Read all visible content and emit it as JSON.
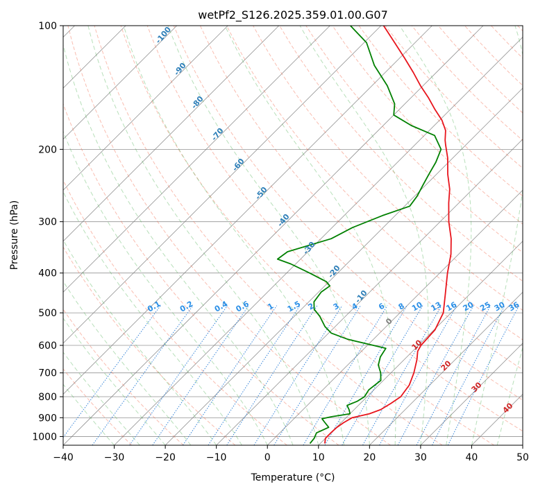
{
  "chart_data": {
    "type": "line",
    "title": "wetPf2_S126.2025.359.01.00.G07",
    "xlabel": "Temperature (°C)",
    "ylabel": "Pressure (hPa)",
    "xlim": [
      -40,
      50
    ],
    "ylim": [
      1050,
      100
    ],
    "y_scale": "log",
    "skew": "skew-T",
    "grid": true,
    "x_ticks": [
      -40,
      -30,
      -20,
      -10,
      0,
      10,
      20,
      30,
      40,
      50
    ],
    "y_ticks": [
      100,
      200,
      300,
      400,
      500,
      600,
      700,
      800,
      900,
      1000
    ],
    "series": [
      {
        "role": "temperature",
        "color": "#e8141c",
        "points": [
          [
            1040,
            10.9
          ],
          [
            1010,
            10.0
          ],
          [
            980,
            10.0
          ],
          [
            950,
            10.1
          ],
          [
            925,
            10.5
          ],
          [
            900,
            11.2
          ],
          [
            880,
            13.8
          ],
          [
            860,
            15.2
          ],
          [
            830,
            16.0
          ],
          [
            800,
            16.6
          ],
          [
            750,
            16.0
          ],
          [
            700,
            14.5
          ],
          [
            650,
            12.5
          ],
          [
            620,
            11.0
          ],
          [
            600,
            10.5
          ],
          [
            550,
            10.2
          ],
          [
            500,
            8.5
          ],
          [
            450,
            5.2
          ],
          [
            400,
            1.5
          ],
          [
            360,
            -1.5
          ],
          [
            330,
            -4.5
          ],
          [
            300,
            -8.3
          ],
          [
            270,
            -12.0
          ],
          [
            250,
            -14.5
          ],
          [
            230,
            -17.8
          ],
          [
            210,
            -21.0
          ],
          [
            195,
            -24.0
          ],
          [
            190,
            -25.0
          ],
          [
            180,
            -26.8
          ],
          [
            170,
            -29.5
          ],
          [
            160,
            -33.0
          ],
          [
            150,
            -36.5
          ],
          [
            140,
            -40.5
          ],
          [
            130,
            -44.5
          ],
          [
            120,
            -49.0
          ],
          [
            110,
            -54.0
          ],
          [
            100,
            -59.5
          ]
        ]
      },
      {
        "role": "dewpoint",
        "color": "#008000",
        "points": [
          [
            1040,
            8.0
          ],
          [
            1010,
            7.8
          ],
          [
            980,
            7.2
          ],
          [
            950,
            8.5
          ],
          [
            920,
            6.5
          ],
          [
            905,
            5.5
          ],
          [
            895,
            7.0
          ],
          [
            880,
            10.0
          ],
          [
            860,
            9.0
          ],
          [
            840,
            7.8
          ],
          [
            820,
            9.0
          ],
          [
            800,
            9.5
          ],
          [
            770,
            9.0
          ],
          [
            730,
            9.5
          ],
          [
            700,
            8.0
          ],
          [
            670,
            6.0
          ],
          [
            640,
            4.8
          ],
          [
            610,
            4.2
          ],
          [
            580,
            -5.0
          ],
          [
            560,
            -9.5
          ],
          [
            540,
            -12.0
          ],
          [
            510,
            -15.0
          ],
          [
            490,
            -17.5
          ],
          [
            470,
            -19.0
          ],
          [
            445,
            -19.5
          ],
          [
            430,
            -19.0
          ],
          [
            420,
            -20.5
          ],
          [
            400,
            -25.5
          ],
          [
            380,
            -31.0
          ],
          [
            370,
            -34.5
          ],
          [
            355,
            -34.0
          ],
          [
            330,
            -28.0
          ],
          [
            310,
            -26.0
          ],
          [
            290,
            -22.5
          ],
          [
            275,
            -19.0
          ],
          [
            260,
            -19.5
          ],
          [
            245,
            -20.5
          ],
          [
            230,
            -21.5
          ],
          [
            215,
            -22.5
          ],
          [
            200,
            -24.0
          ],
          [
            185,
            -28.0
          ],
          [
            175,
            -34.5
          ],
          [
            165,
            -40.0
          ],
          [
            155,
            -42.0
          ],
          [
            140,
            -47.0
          ],
          [
            125,
            -53.5
          ],
          [
            110,
            -59.5
          ],
          [
            100,
            -66.0
          ]
        ]
      }
    ],
    "dry_adiabat_labels": [
      "-100",
      "-90",
      "-80",
      "-70",
      "-60",
      "-50",
      "-40",
      "-30",
      "-20",
      "-10"
    ],
    "mixing_ratio_labels": [
      "0.1",
      "0.2",
      "0.4",
      "0.6",
      "1",
      "1.5",
      "2",
      "3",
      "4",
      "6",
      "8",
      "10",
      "13",
      "16",
      "20",
      "25",
      "30",
      "36"
    ],
    "moist_adiabat_labels": [
      "0",
      "10",
      "20",
      "30",
      "40"
    ]
  },
  "colors": {
    "temperature": "#e8141c",
    "dewpoint": "#008000",
    "dry_adiabat": "#f26d4f",
    "moist_adiabat": "#4caf50",
    "mixing_ratio": "#1f77d4",
    "isotherm": "#7f7f7f",
    "isobar": "#7f7f7f",
    "dry_label": "#2e7fb8",
    "mix_label": "#2b8fe6",
    "moist_label": "#d02525"
  }
}
